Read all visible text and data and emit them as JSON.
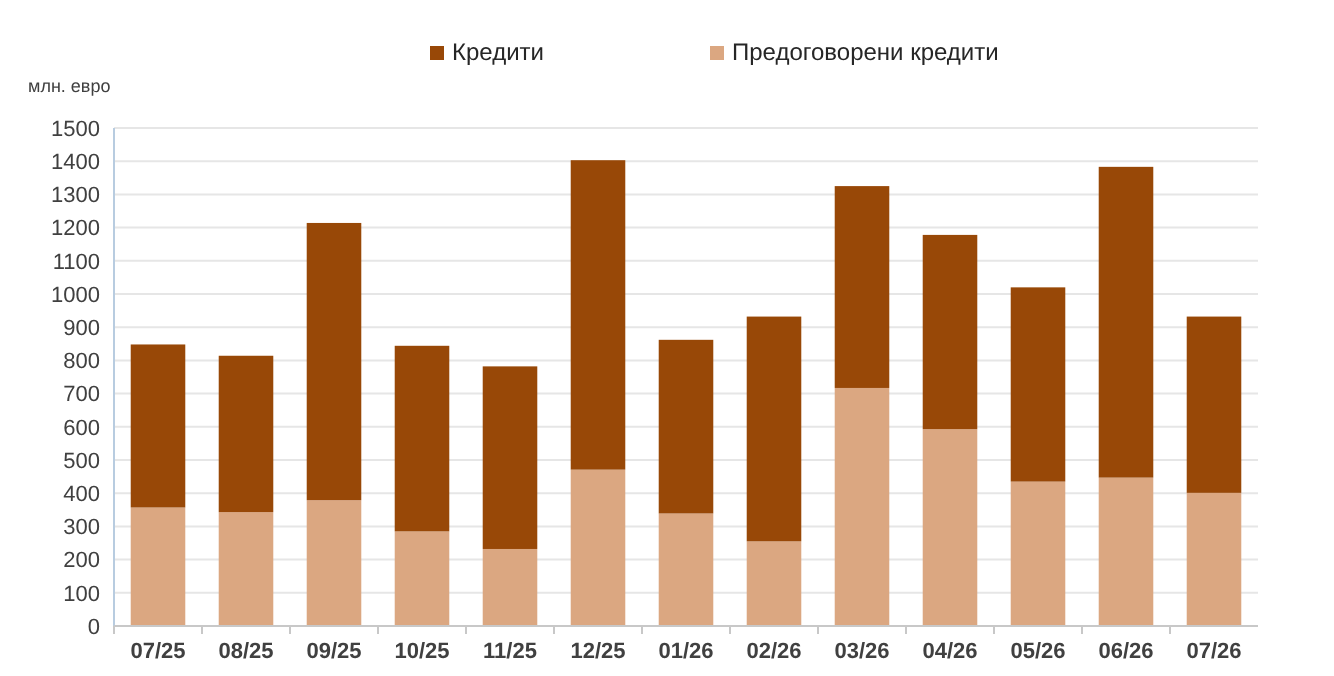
{
  "chart_data": {
    "type": "bar",
    "stacked": true,
    "ylabel": "млн. евро",
    "categories": [
      "07/25",
      "08/25",
      "09/25",
      "10/25",
      "11/25",
      "12/25",
      "01/26",
      "02/26",
      "03/26",
      "04/26",
      "05/26",
      "06/26",
      "07/26"
    ],
    "series": [
      {
        "name": "Предоговорени кредити",
        "color": "#dba781",
        "values": [
          357,
          343,
          379,
          285,
          232,
          471,
          339,
          255,
          717,
          593,
          435,
          447,
          401
        ]
      },
      {
        "name": "Кредити",
        "color": "#984807",
        "values": [
          491,
          471,
          835,
          559,
          550,
          932,
          523,
          677,
          608,
          585,
          585,
          936,
          531
        ]
      }
    ],
    "ylim": [
      0,
      1500
    ],
    "yticks": [
      0,
      100,
      200,
      300,
      400,
      500,
      600,
      700,
      800,
      900,
      1000,
      1100,
      1200,
      1300,
      1400,
      1500
    ],
    "grid": "y",
    "legend": "top"
  }
}
